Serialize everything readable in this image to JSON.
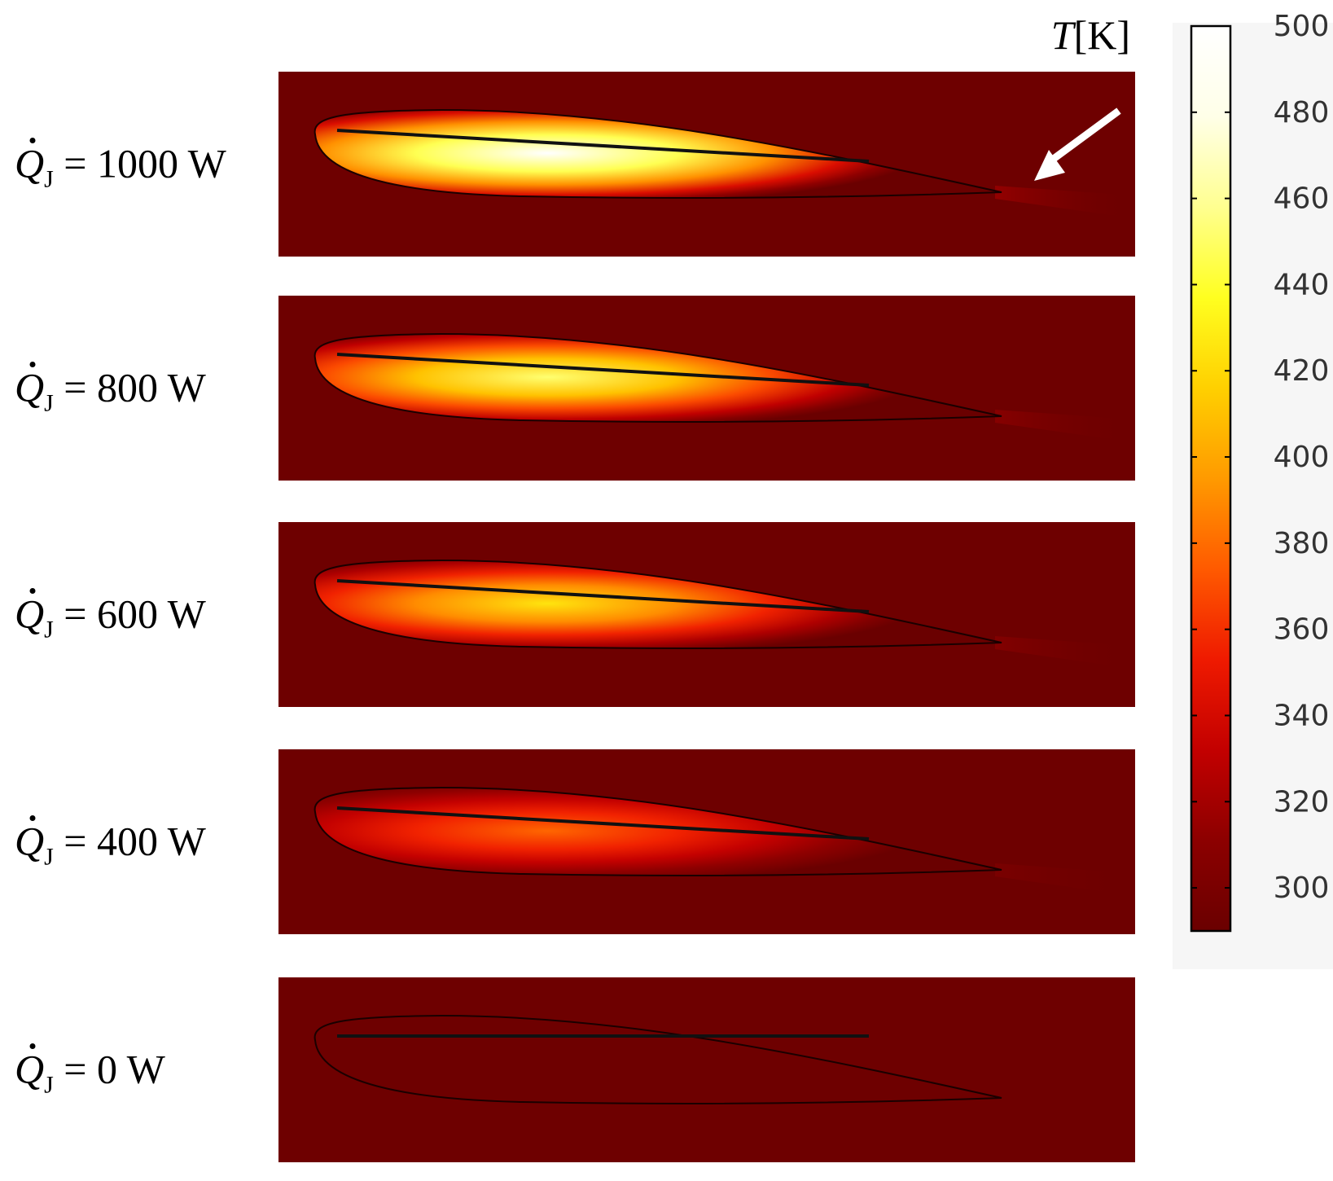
{
  "colorbar": {
    "title_symbol": "T",
    "title_unit": "[K]",
    "min": 290,
    "max": 500,
    "ticks": [
      "300",
      "320",
      "340",
      "360",
      "380",
      "400",
      "420",
      "440",
      "460",
      "480",
      "500"
    ],
    "colormap": [
      "#6a0000",
      "#8c0000",
      "#c30000",
      "#ef1a00",
      "#ff5a00",
      "#ff9a00",
      "#ffd000",
      "#ffff20",
      "#ffff90",
      "#ffffe8",
      "#ffffff"
    ]
  },
  "panels": [
    {
      "label_var": "Q",
      "label_sub": "J",
      "label_value": " = 1000 W",
      "power_W": 1000,
      "max_temperature_K": 500,
      "arrow": true
    },
    {
      "label_var": "Q",
      "label_sub": "J",
      "label_value": " = 800 W",
      "power_W": 800,
      "max_temperature_K": 452,
      "arrow": false
    },
    {
      "label_var": "Q",
      "label_sub": "J",
      "label_value": " = 600 W",
      "power_W": 600,
      "max_temperature_K": 425,
      "arrow": false
    },
    {
      "label_var": "Q",
      "label_sub": "J",
      "label_value": " = 400 W",
      "power_W": 400,
      "max_temperature_K": 378,
      "arrow": false
    },
    {
      "label_var": "Q",
      "label_sub": "J",
      "label_value": " = 0 W",
      "power_W": 0,
      "max_temperature_K": 293,
      "arrow": false
    }
  ],
  "colors": {
    "background_field": "#6e0000",
    "outline": "#1a0000",
    "arrow": "#ffffff"
  }
}
